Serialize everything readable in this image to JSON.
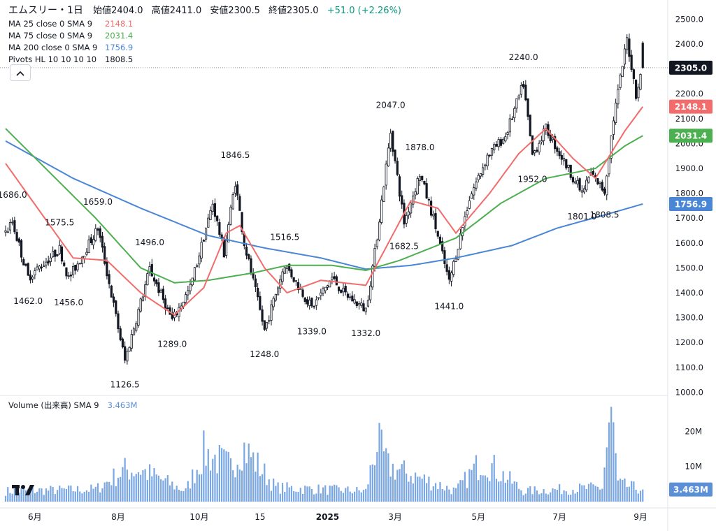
{
  "header": {
    "symbol": "エムスリー・1日",
    "open_label": "始値",
    "open": "2404.0",
    "high_label": "高値",
    "high": "2411.0",
    "low_label": "安値",
    "low": "2300.5",
    "close_label": "終値",
    "close": "2305.0",
    "change": "+51.0 (+2.26%)"
  },
  "indicators": [
    {
      "label": "MA 25 close 0 SMA 9",
      "value": "2148.1",
      "color": "#f26c6c"
    },
    {
      "label": "MA 75 close 0 SMA 9",
      "value": "2031.4",
      "color": "#4caf50"
    },
    {
      "label": "MA 200 close 0 SMA 9",
      "value": "1756.9",
      "color": "#4a86d6"
    },
    {
      "label": "Pivots HL 10 10 10 10",
      "value": "1808.5",
      "color": "#131722"
    }
  ],
  "collapse_icon": "chevron-up-icon",
  "volume_legend": {
    "label": "Volume (出来高) SMA 9",
    "value": "3.463M"
  },
  "colors": {
    "up": "#ffffff",
    "down": "#131722",
    "volume": "#7aa7e3",
    "ma25": "#f26c6c",
    "ma75": "#4caf50",
    "ma200": "#4a86d6"
  },
  "chart_data": {
    "type": "candlestick",
    "price_axis": {
      "ticks": [
        "2500.0",
        "2400.0",
        "2300.0",
        "2200.0",
        "2100.0",
        "2000.0",
        "1900.0",
        "1800.0",
        "1700.0",
        "1600.0",
        "1500.0",
        "1400.0",
        "1300.0",
        "1200.0",
        "1100.0",
        "1000.0"
      ],
      "range": [
        1000,
        2500
      ]
    },
    "volume_axis": {
      "ticks": [
        "20M",
        "10M"
      ],
      "range": [
        0,
        30
      ]
    },
    "x_ticks": [
      "6月",
      "8月",
      "10月",
      "15",
      "2025",
      "3月",
      "5月",
      "7月",
      "9月"
    ],
    "price_tags": [
      {
        "value": 2305.0,
        "text": "2305.0",
        "color": "#131722"
      },
      {
        "value": 2148.1,
        "text": "2148.1",
        "color": "#f26c6c"
      },
      {
        "value": 2031.4,
        "text": "2031.4",
        "color": "#4caf50"
      },
      {
        "value": 1756.9,
        "text": "1756.9",
        "color": "#4a86d6"
      }
    ],
    "volume_tag": {
      "value": 3.463,
      "text": "3.463M"
    },
    "pivots": [
      {
        "text": "1686.0",
        "price": 1686.0,
        "kind": "high",
        "day": 3
      },
      {
        "text": "1462.0",
        "price": 1462.0,
        "kind": "low",
        "day": 10
      },
      {
        "text": "1575.5",
        "price": 1575.5,
        "kind": "high",
        "day": 24
      },
      {
        "text": "1456.0",
        "price": 1456.0,
        "kind": "low",
        "day": 28
      },
      {
        "text": "1659.0",
        "price": 1659.0,
        "kind": "high",
        "day": 41
      },
      {
        "text": "1126.5",
        "price": 1126.5,
        "kind": "low",
        "day": 53
      },
      {
        "text": "1496.0",
        "price": 1496.0,
        "kind": "high",
        "day": 64
      },
      {
        "text": "1289.0",
        "price": 1289.0,
        "kind": "low",
        "day": 74
      },
      {
        "text": "1846.5",
        "price": 1846.5,
        "kind": "high",
        "day": 102
      },
      {
        "text": "1248.0",
        "price": 1248.0,
        "kind": "low",
        "day": 115
      },
      {
        "text": "1516.5",
        "price": 1516.5,
        "kind": "high",
        "day": 124
      },
      {
        "text": "1339.0",
        "price": 1339.0,
        "kind": "low",
        "day": 136
      },
      {
        "text": "1332.0",
        "price": 1332.0,
        "kind": "low",
        "day": 160
      },
      {
        "text": "2047.0",
        "price": 2047.0,
        "kind": "high",
        "day": 171
      },
      {
        "text": "1682.5",
        "price": 1682.5,
        "kind": "low",
        "day": 177
      },
      {
        "text": "1878.0",
        "price": 1878.0,
        "kind": "high",
        "day": 184
      },
      {
        "text": "1441.0",
        "price": 1441.0,
        "kind": "low",
        "day": 197
      },
      {
        "text": "2240.0",
        "price": 2240.0,
        "kind": "high",
        "day": 230
      },
      {
        "text": "1952.0",
        "price": 1952.0,
        "kind": "low",
        "day": 234
      },
      {
        "text": "1801.0",
        "price": 1801.0,
        "kind": "low",
        "day": 256
      },
      {
        "text": "1808.5",
        "price": 1808.5,
        "kind": "low",
        "day": 266
      }
    ],
    "anchors": [
      [
        0,
        1640
      ],
      [
        3,
        1686
      ],
      [
        10,
        1462
      ],
      [
        24,
        1575.5
      ],
      [
        28,
        1456
      ],
      [
        41,
        1659
      ],
      [
        53,
        1126.5
      ],
      [
        64,
        1496
      ],
      [
        74,
        1289
      ],
      [
        82,
        1420
      ],
      [
        92,
        1760
      ],
      [
        97,
        1560
      ],
      [
        102,
        1846.5
      ],
      [
        106,
        1600
      ],
      [
        115,
        1248
      ],
      [
        124,
        1516.5
      ],
      [
        136,
        1339
      ],
      [
        145,
        1460
      ],
      [
        150,
        1400
      ],
      [
        160,
        1332
      ],
      [
        164,
        1560
      ],
      [
        171,
        2047
      ],
      [
        177,
        1682.5
      ],
      [
        184,
        1878
      ],
      [
        190,
        1700
      ],
      [
        197,
        1441
      ],
      [
        206,
        1780
      ],
      [
        214,
        1950
      ],
      [
        222,
        2030
      ],
      [
        230,
        2240
      ],
      [
        234,
        1952
      ],
      [
        240,
        2060
      ],
      [
        246,
        1960
      ],
      [
        256,
        1801
      ],
      [
        260,
        1880
      ],
      [
        266,
        1808.5
      ],
      [
        270,
        2100
      ],
      [
        276,
        2420
      ],
      [
        280,
        2200
      ],
      [
        283,
        2300
      ]
    ],
    "ma25_anchors": [
      [
        0,
        1920
      ],
      [
        30,
        1540
      ],
      [
        45,
        1530
      ],
      [
        60,
        1400
      ],
      [
        75,
        1310
      ],
      [
        88,
        1420
      ],
      [
        98,
        1640
      ],
      [
        104,
        1670
      ],
      [
        115,
        1500
      ],
      [
        125,
        1400
      ],
      [
        140,
        1450
      ],
      [
        160,
        1430
      ],
      [
        170,
        1600
      ],
      [
        180,
        1770
      ],
      [
        192,
        1740
      ],
      [
        200,
        1640
      ],
      [
        215,
        1800
      ],
      [
        228,
        1960
      ],
      [
        240,
        2060
      ],
      [
        252,
        1940
      ],
      [
        262,
        1860
      ],
      [
        275,
        2050
      ],
      [
        283,
        2148.1
      ]
    ],
    "ma75_anchors": [
      [
        0,
        2060
      ],
      [
        20,
        1880
      ],
      [
        40,
        1700
      ],
      [
        60,
        1500
      ],
      [
        75,
        1440
      ],
      [
        90,
        1450
      ],
      [
        110,
        1480
      ],
      [
        125,
        1510
      ],
      [
        145,
        1510
      ],
      [
        160,
        1490
      ],
      [
        175,
        1530
      ],
      [
        200,
        1620
      ],
      [
        220,
        1760
      ],
      [
        240,
        1860
      ],
      [
        262,
        1900
      ],
      [
        275,
        1990
      ],
      [
        283,
        2031.4
      ]
    ],
    "ma200_anchors": [
      [
        0,
        2010
      ],
      [
        30,
        1860
      ],
      [
        60,
        1740
      ],
      [
        90,
        1630
      ],
      [
        115,
        1580
      ],
      [
        140,
        1540
      ],
      [
        160,
        1495
      ],
      [
        180,
        1510
      ],
      [
        200,
        1540
      ],
      [
        225,
        1590
      ],
      [
        245,
        1660
      ],
      [
        265,
        1710
      ],
      [
        283,
        1756.9
      ]
    ],
    "volume_anchors": [
      [
        0,
        3
      ],
      [
        40,
        3.5
      ],
      [
        53,
        9
      ],
      [
        60,
        9
      ],
      [
        80,
        3
      ],
      [
        88,
        14
      ],
      [
        100,
        10
      ],
      [
        105,
        16
      ],
      [
        120,
        4
      ],
      [
        160,
        3
      ],
      [
        165,
        17
      ],
      [
        170,
        10
      ],
      [
        200,
        3
      ],
      [
        212,
        12
      ],
      [
        230,
        3
      ],
      [
        265,
        4
      ],
      [
        269,
        27
      ],
      [
        272,
        5
      ],
      [
        283,
        3.463
      ]
    ],
    "xlabel": "",
    "ylabel": "",
    "grid": false
  }
}
